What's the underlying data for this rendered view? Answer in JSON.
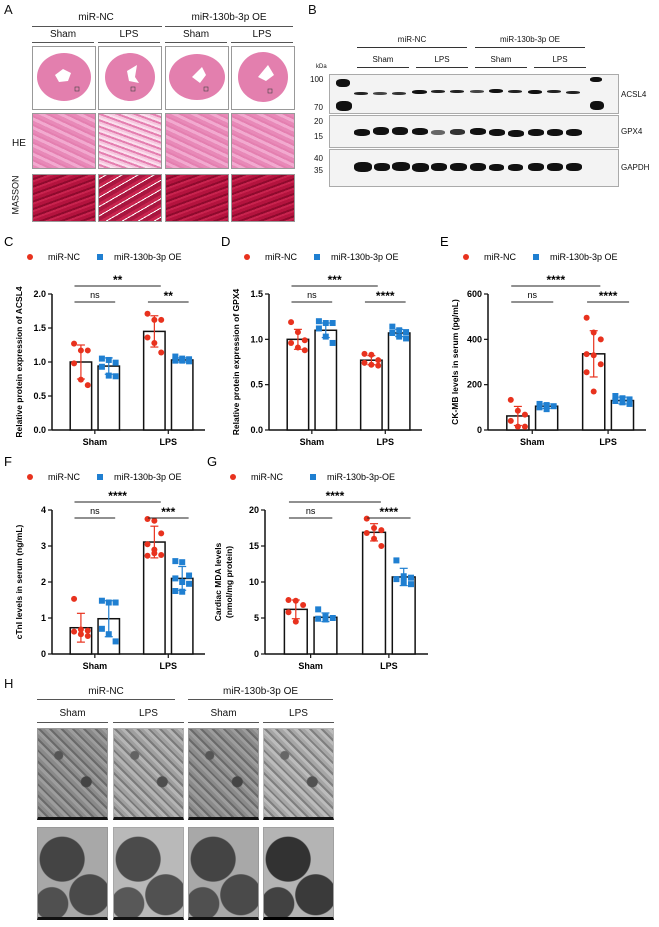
{
  "panels": {
    "A": {
      "label": "A",
      "groups": [
        "miR-NC",
        "miR-130b-3p OE"
      ],
      "conditions": [
        "Sham",
        "LPS",
        "Sham",
        "LPS"
      ],
      "row_labels": [
        "HE",
        "MASSON"
      ]
    },
    "B": {
      "label": "B",
      "groups": [
        "miR-NC",
        "miR-130b-3p OE"
      ],
      "conditions": [
        "Sham",
        "LPS",
        "Sham",
        "LPS"
      ],
      "kda_label": "kDa",
      "markers": [
        "100",
        "70",
        "20",
        "15",
        "40",
        "35"
      ],
      "proteins": [
        "ACSL4",
        "GPX4",
        "GAPDH"
      ]
    },
    "H": {
      "label": "H",
      "groups": [
        "miR-NC",
        "miR-130b-3p OE"
      ],
      "conditions": [
        "Sham",
        "LPS",
        "Sham",
        "LPS"
      ]
    }
  },
  "colors": {
    "miR_NC": "#e8321e",
    "OE": "#1f7fd1"
  },
  "chart_data": [
    {
      "panel": "C",
      "type": "bar",
      "categories": [
        "Sham",
        "LPS"
      ],
      "legend": [
        "miR-NC",
        "miR-130b-3p OE"
      ],
      "ylabel": "Relative protein expression of ACSL4",
      "ylim": [
        0,
        2.0
      ],
      "yticks": [
        "0.0",
        "0.5",
        "1.0",
        "1.5",
        "2.0"
      ],
      "series": [
        {
          "name": "miR-NC",
          "values": [
            1.0,
            1.45
          ],
          "sd": [
            0.25,
            0.23
          ],
          "points": [
            [
              1.27,
              1.17,
              1.17,
              0.98,
              0.74,
              0.66
            ],
            [
              1.71,
              1.62,
              1.62,
              1.36,
              1.28,
              1.14
            ]
          ]
        },
        {
          "name": "miR-130b-3p OE",
          "values": [
            0.94,
            1.03
          ],
          "sd": [
            0.12,
            0.03
          ],
          "points": [
            [
              1.05,
              1.03,
              0.99,
              0.93,
              0.8,
              0.79
            ],
            [
              1.08,
              1.05,
              1.04,
              1.02,
              1.02,
              1.01
            ]
          ]
        }
      ],
      "significance": [
        {
          "label": "ns",
          "between": "Sham"
        },
        {
          "label": "**",
          "between": "LPS"
        },
        {
          "label": "**",
          "between": "NC Sham vs NC LPS"
        }
      ]
    },
    {
      "panel": "D",
      "type": "bar",
      "categories": [
        "Sham",
        "LPS"
      ],
      "legend": [
        "miR-NC",
        "miR-130b-3p OE"
      ],
      "ylabel": "Relative protein expression of GPX4",
      "ylim": [
        0,
        1.5
      ],
      "yticks": [
        "0.0",
        "0.5",
        "1.0",
        "1.5"
      ],
      "series": [
        {
          "name": "miR-NC",
          "values": [
            1.0,
            0.77
          ],
          "sd": [
            0.11,
            0.05
          ],
          "points": [
            [
              1.19,
              1.08,
              0.99,
              0.96,
              0.91,
              0.88
            ],
            [
              0.84,
              0.83,
              0.77,
              0.74,
              0.72,
              0.71
            ]
          ]
        },
        {
          "name": "miR-130b-3p OE",
          "values": [
            1.1,
            1.07
          ],
          "sd": [
            0.08,
            0.04
          ],
          "points": [
            [
              1.2,
              1.18,
              1.18,
              1.12,
              1.03,
              0.96
            ],
            [
              1.14,
              1.1,
              1.08,
              1.07,
              1.03,
              1.01
            ]
          ]
        }
      ],
      "significance": [
        {
          "label": "ns",
          "between": "Sham"
        },
        {
          "label": "****",
          "between": "LPS"
        },
        {
          "label": "***",
          "between": "NC Sham vs NC LPS"
        }
      ]
    },
    {
      "panel": "E",
      "type": "bar",
      "categories": [
        "Sham",
        "LPS"
      ],
      "legend": [
        "miR-NC",
        "miR-130b-3p OE"
      ],
      "ylabel": "CK-MB levels in serum (pg/mL)",
      "ylim": [
        0,
        600
      ],
      "yticks": [
        "0",
        "200",
        "400",
        "600"
      ],
      "series": [
        {
          "name": "miR-NC",
          "values": [
            62,
            336
          ],
          "sd": [
            42,
            102
          ],
          "points": [
            [
              133,
              85,
              68,
              40,
              15,
              15
            ],
            [
              495,
              430,
              400,
              335,
              330,
              290,
              255,
              170
            ]
          ]
        },
        {
          "name": "miR-130b-3p OE",
          "values": [
            105,
            130
          ],
          "sd": [
            10,
            15
          ],
          "points": [
            [
              115,
              110,
              105,
              100,
              92
            ],
            [
              150,
              140,
              135,
              128,
              122,
              115
            ]
          ]
        }
      ],
      "significance": [
        {
          "label": "ns",
          "between": "Sham"
        },
        {
          "label": "****",
          "between": "LPS"
        },
        {
          "label": "****",
          "between": "NC Sham vs NC LPS"
        }
      ]
    },
    {
      "panel": "F",
      "type": "bar",
      "categories": [
        "Sham",
        "LPS"
      ],
      "legend": [
        "miR-NC",
        "miR-130b-3p OE"
      ],
      "ylabel": "cTnI levels in serum (ng/mL)",
      "ylim": [
        0,
        4
      ],
      "yticks": [
        "0",
        "1",
        "2",
        "3",
        "4"
      ],
      "series": [
        {
          "name": "miR-NC",
          "values": [
            0.73,
            3.11
          ],
          "sd": [
            0.4,
            0.44
          ],
          "points": [
            [
              1.53,
              0.68,
              0.65,
              0.62,
              0.55,
              0.5
            ],
            [
              3.75,
              3.7,
              3.35,
              3.05,
              2.8,
              2.75,
              2.73,
              2.9
            ]
          ]
        },
        {
          "name": "miR-130b-3p OE",
          "values": [
            0.98,
            2.1
          ],
          "sd": [
            0.5,
            0.33
          ],
          "points": [
            [
              1.48,
              1.43,
              1.43,
              0.7,
              0.55,
              0.35
            ],
            [
              2.58,
              2.55,
              2.18,
              2.1,
              2.0,
              1.95,
              1.75,
              1.73
            ]
          ]
        }
      ],
      "significance": [
        {
          "label": "ns",
          "between": "Sham"
        },
        {
          "label": "***",
          "between": "LPS"
        },
        {
          "label": "****",
          "between": "NC Sham vs NC LPS"
        }
      ]
    },
    {
      "panel": "G",
      "type": "bar",
      "categories": [
        "Sham",
        "LPS"
      ],
      "legend": [
        "miR-NC",
        "miR-130b-3p-OE"
      ],
      "ylabel": "Cardiac MDA levels (nmol/mg protein)",
      "ylim": [
        0,
        20
      ],
      "yticks": [
        "0",
        "5",
        "10",
        "15",
        "20"
      ],
      "series": [
        {
          "name": "miR-NC",
          "values": [
            6.2,
            16.9
          ],
          "sd": [
            1.3,
            1.2
          ],
          "points": [
            [
              7.5,
              7.4,
              6.8,
              5.8,
              4.5
            ],
            [
              18.8,
              17.5,
              17.2,
              16.8,
              16.0,
              15.0
            ]
          ]
        },
        {
          "name": "miR-130b-3p-OE",
          "values": [
            5.1,
            10.7
          ],
          "sd": [
            0.6,
            1.2
          ],
          "points": [
            [
              6.2,
              5.2,
              5.0,
              4.9,
              4.8
            ],
            [
              13.0,
              10.8,
              10.6,
              10.4,
              10.0,
              9.7
            ]
          ]
        }
      ],
      "significance": [
        {
          "label": "ns",
          "between": "Sham"
        },
        {
          "label": "****",
          "between": "LPS"
        },
        {
          "label": "****",
          "between": "NC Sham vs NC LPS"
        }
      ]
    }
  ]
}
